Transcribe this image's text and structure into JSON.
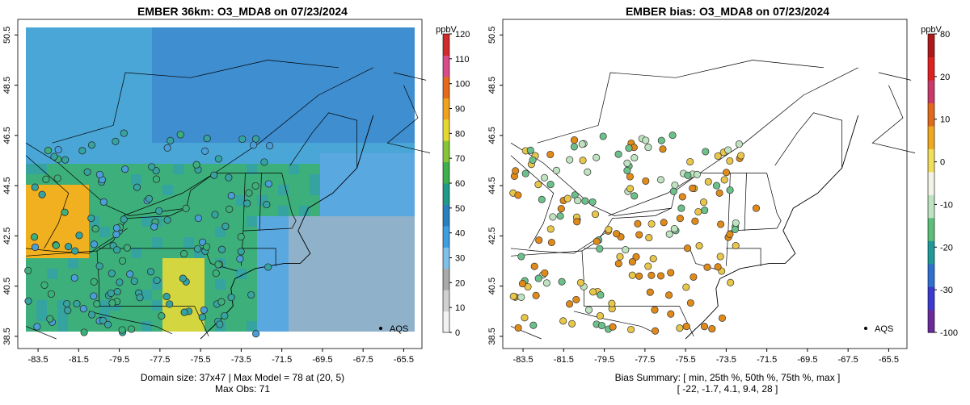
{
  "left": {
    "title": "EMBER 36km: O3_MDA8 on 07/23/2024",
    "footer_line1": "Domain size: 37x47 | Max Model = 78 at (20, 5)",
    "footer_line2": "Max Obs: 71",
    "legend_marker_label": "AQS",
    "colorbar": {
      "unit": "ppbV",
      "ticks": [
        "0",
        "10",
        "20",
        "30",
        "40",
        "50",
        "60",
        "70",
        "80",
        "90",
        "100",
        "110",
        "120"
      ],
      "colors": [
        "#f2f2f2",
        "#d0d0d0",
        "#a9a9a9",
        "#7fc0e8",
        "#3d9ee0",
        "#2a7fbf",
        "#1f9a8a",
        "#3fae4d",
        "#86c43a",
        "#e4d82e",
        "#f0a21e",
        "#e66a1c",
        "#d84c8a",
        "#d12a2a"
      ]
    }
  },
  "right": {
    "title": "EMBER bias: O3_MDA8 on 07/23/2024",
    "footer_line1": "Bias Summary: [ min, 25th %, 50th %, 75th %, max ]",
    "footer_line2": "[ -22,   -1.7,   4.1,   9.4,   28 ]",
    "legend_marker_label": "AQS",
    "colorbar": {
      "unit": "ppbV",
      "ticks": [
        "-100",
        "-30",
        "-20",
        "-10",
        "0",
        "10",
        "20",
        "80"
      ],
      "colors": [
        "#6a2a9a",
        "#3a3ad0",
        "#2f6fd0",
        "#1f9a9a",
        "#5bbf7a",
        "#bde3c2",
        "#f2f2e6",
        "#f0df5a",
        "#f0a81e",
        "#e06a1a",
        "#c93a6a",
        "#e01f1f",
        "#b01818"
      ]
    }
  },
  "axes": {
    "x_ticks": [
      "-83.5",
      "-81.5",
      "-79.5",
      "-77.5",
      "-75.5",
      "-73.5",
      "-71.5",
      "-69.5",
      "-67.5",
      "-65.5"
    ],
    "y_ticks": [
      "38.5",
      "40.5",
      "42.5",
      "44.5",
      "46.5",
      "48.5",
      "50.5"
    ]
  },
  "map_style": {
    "model_colors": {
      "ocean_far": "#8fb1c9",
      "ocean_near": "#5aa8e0",
      "coast": "#35a3a0",
      "land": "#3daf7a",
      "high": "#d4d640",
      "hot": "#f0b020"
    },
    "bias_colors": {
      "high": "#e08a1a",
      "mid": "#e8c64a",
      "low": "#bfe3c0",
      "neg": "#6cc08a"
    }
  }
}
